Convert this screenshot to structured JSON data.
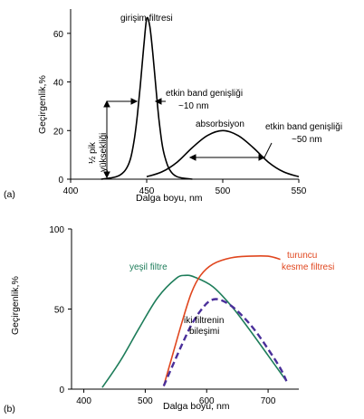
{
  "chart_data": [
    {
      "panel_label": "(a)",
      "type": "line",
      "xlabel": "Dalga boyu, nm",
      "ylabel": "Geçirgenlik,%",
      "xlim": [
        400,
        550
      ],
      "ylim": [
        0,
        70
      ],
      "x_ticks": [
        400,
        450,
        500,
        550
      ],
      "y_ticks": [
        0,
        20,
        40,
        60
      ],
      "series": [
        {
          "name": "girişim filtresi",
          "x": [
            420,
            430,
            435,
            438,
            440,
            442,
            444,
            446,
            448,
            450,
            452,
            454,
            456,
            458,
            460,
            462,
            465,
            470,
            480
          ],
          "y": [
            0,
            1,
            3,
            6,
            10,
            17,
            27,
            40,
            54,
            66,
            63,
            52,
            38,
            25,
            15,
            9,
            4,
            1,
            0
          ]
        },
        {
          "name": "absorbsiyon",
          "x": [
            450,
            460,
            470,
            480,
            490,
            500,
            510,
            520,
            530,
            540,
            550
          ],
          "y": [
            1,
            3,
            7,
            13,
            18,
            20,
            18,
            13,
            7,
            3,
            1
          ]
        }
      ],
      "annotations": {
        "interference_filter": "girişim filtresi",
        "absorption": "absorbsiyon",
        "effective_bandwidth_1": "etkin band genişliği",
        "bandwidth_value_1": "~10 nm",
        "effective_bandwidth_2": "etkin band genişliği",
        "bandwidth_value_2": "~50 nm",
        "half_peak_line1": "½ pik",
        "half_peak_line2": "yüksekliği"
      }
    },
    {
      "panel_label": "(b)",
      "type": "line",
      "xlabel": "Dalga boyu, nm",
      "ylabel": "Geçirgenlik,%",
      "xlim": [
        380,
        750
      ],
      "ylim": [
        0,
        100
      ],
      "x_ticks": [
        400,
        500,
        600,
        700
      ],
      "y_ticks": [
        0,
        50,
        100
      ],
      "series": [
        {
          "name": "yeşil filtre",
          "color": "#1e7d5a",
          "x": [
            430,
            460,
            490,
            520,
            550,
            565,
            580,
            610,
            640,
            670,
            700,
            730
          ],
          "y": [
            1,
            18,
            38,
            57,
            69,
            71,
            70,
            64,
            52,
            37,
            21,
            5
          ]
        },
        {
          "name": "turuncu kesme filtresi",
          "color": "#e0461e",
          "x": [
            530,
            545,
            560,
            575,
            590,
            610,
            640,
            670,
            700,
            720
          ],
          "y": [
            2,
            22,
            42,
            60,
            71,
            78,
            82,
            83,
            83,
            81
          ]
        },
        {
          "name": "iki filtrenin bileşimi",
          "color": "#4a2f9a",
          "dashed": true,
          "x": [
            530,
            545,
            560,
            575,
            590,
            605,
            620,
            640,
            660,
            680,
            700,
            720,
            730
          ],
          "y": [
            2,
            15,
            28,
            40,
            49,
            55,
            56,
            52,
            45,
            36,
            25,
            13,
            5
          ]
        }
      ],
      "annotations": {
        "green_filter": "yeşil filtre",
        "orange_line1": "turuncu",
        "orange_line2": "kesme filtresi",
        "combo_line1": "iki filtrenin",
        "combo_line2": "bileşimi"
      }
    }
  ]
}
